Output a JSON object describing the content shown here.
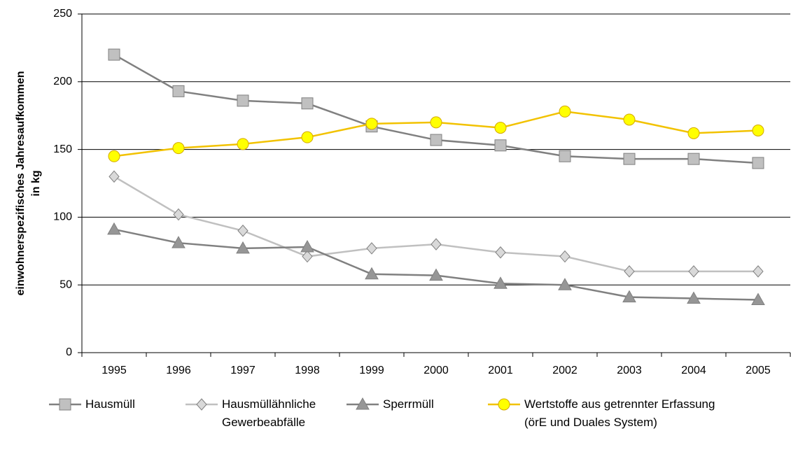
{
  "chart_data": {
    "type": "line",
    "y_label": [
      "einwohnerspezifisches Jahresaufkommen",
      "in kg"
    ],
    "categories": [
      "1995",
      "1996",
      "1997",
      "1998",
      "1999",
      "2000",
      "2001",
      "2002",
      "2003",
      "2004",
      "2005"
    ],
    "series": [
      {
        "name": "Hausmüll",
        "color": "#808080",
        "marker": "square",
        "marker_color": "#c0c0c0",
        "values": [
          220,
          193,
          186,
          184,
          167,
          157,
          153,
          145,
          143,
          143,
          140
        ]
      },
      {
        "name": "Hausmüllähnliche\nGewerbeabfälle",
        "color": "#c0c0c0",
        "marker": "diamond",
        "marker_color": "#d9d9d9",
        "values": [
          130,
          102,
          90,
          71,
          77,
          80,
          74,
          71,
          60,
          60,
          60
        ]
      },
      {
        "name": "Sperrmüll",
        "color": "#808080",
        "marker": "triangle",
        "marker_color": "#969696",
        "values": [
          91,
          81,
          77,
          78,
          58,
          57,
          51,
          50,
          41,
          40,
          39
        ]
      },
      {
        "name": "Wertstoffe aus getrennter Erfassung\n(örE und Duales System)",
        "color": "#f2c200",
        "marker": "circle",
        "marker_color": "#ffff00",
        "values": [
          145,
          151,
          154,
          159,
          169,
          170,
          166,
          178,
          172,
          162,
          164
        ]
      }
    ],
    "ylim": [
      0,
      250
    ],
    "yticks": [
      0,
      50,
      100,
      150,
      200,
      250
    ],
    "grid": true,
    "legend": "bottom"
  }
}
